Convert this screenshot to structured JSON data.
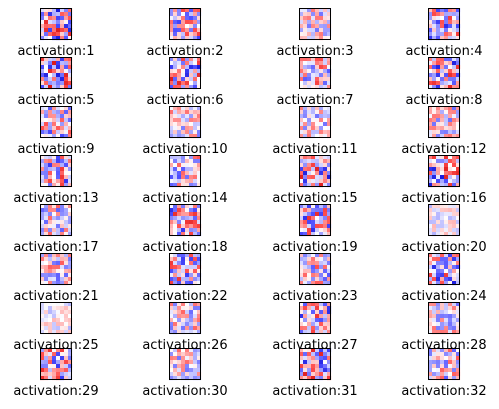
{
  "chart_data": {
    "type": "heatmap",
    "colormap": "seismic (blue-white-red)",
    "grid": false,
    "axes_visible": false,
    "layout": {
      "rows": 8,
      "columns": 4
    },
    "panels": [
      {
        "title": "activation:1"
      },
      {
        "title": "activation:2"
      },
      {
        "title": "activation:3"
      },
      {
        "title": "activation:4"
      },
      {
        "title": "activation:5"
      },
      {
        "title": "activation:6"
      },
      {
        "title": "activation:7"
      },
      {
        "title": "activation:8"
      },
      {
        "title": "activation:9"
      },
      {
        "title": "activation:10"
      },
      {
        "title": "activation:11"
      },
      {
        "title": "activation:12"
      },
      {
        "title": "activation:13"
      },
      {
        "title": "activation:14"
      },
      {
        "title": "activation:15"
      },
      {
        "title": "activation:16"
      },
      {
        "title": "activation:17"
      },
      {
        "title": "activation:18"
      },
      {
        "title": "activation:19"
      },
      {
        "title": "activation:20"
      },
      {
        "title": "activation:21"
      },
      {
        "title": "activation:22"
      },
      {
        "title": "activation:23"
      },
      {
        "title": "activation:24"
      },
      {
        "title": "activation:25"
      },
      {
        "title": "activation:26"
      },
      {
        "title": "activation:27"
      },
      {
        "title": "activation:28"
      },
      {
        "title": "activation:29"
      },
      {
        "title": "activation:30"
      },
      {
        "title": "activation:31"
      },
      {
        "title": "activation:32"
      }
    ]
  }
}
